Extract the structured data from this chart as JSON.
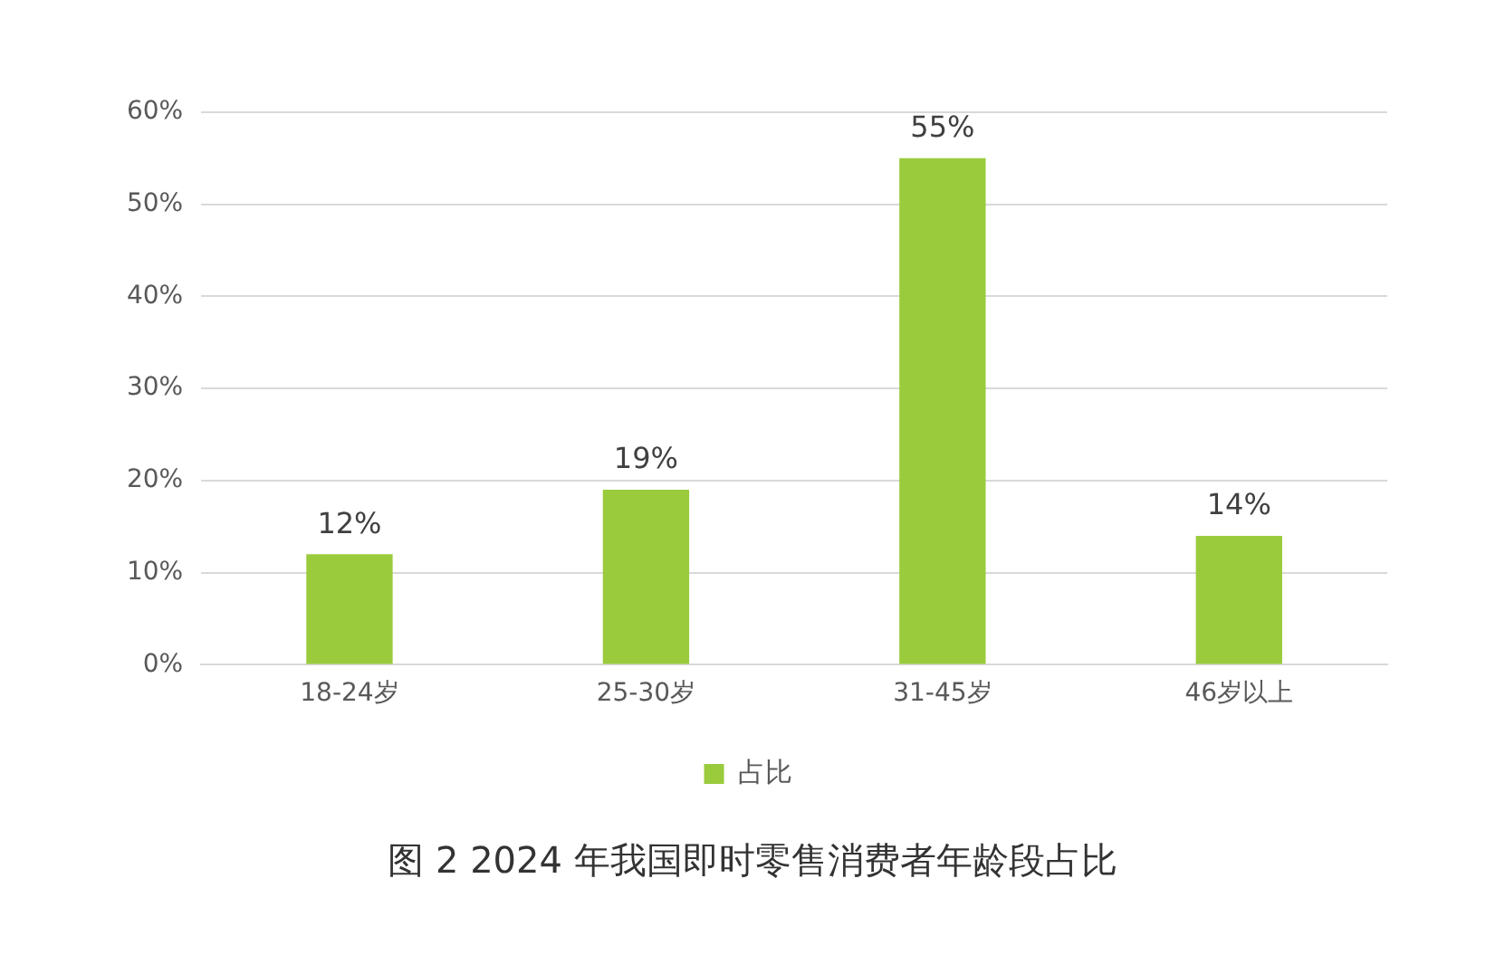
{
  "chart_data": {
    "type": "bar",
    "title": "图 2 2024 年我国即时零售消费者年龄段占比",
    "categories": [
      "18-24岁",
      "25-30岁",
      "31-45岁",
      "46岁以上"
    ],
    "series": [
      {
        "name": "占比",
        "color": "#9acb3c",
        "values": [
          12,
          19,
          55,
          14
        ],
        "value_labels": [
          "12%",
          "19%",
          "55%",
          "14%"
        ]
      }
    ],
    "ylim": [
      0,
      60
    ],
    "yticks": [
      {
        "value": 0,
        "label": "0%"
      },
      {
        "value": 10,
        "label": "10%"
      },
      {
        "value": 20,
        "label": "20%"
      },
      {
        "value": 30,
        "label": "30%"
      },
      {
        "value": 40,
        "label": "40%"
      },
      {
        "value": 50,
        "label": "50%"
      },
      {
        "value": 60,
        "label": "60%"
      }
    ],
    "grid": "y",
    "legend": "bottom"
  }
}
